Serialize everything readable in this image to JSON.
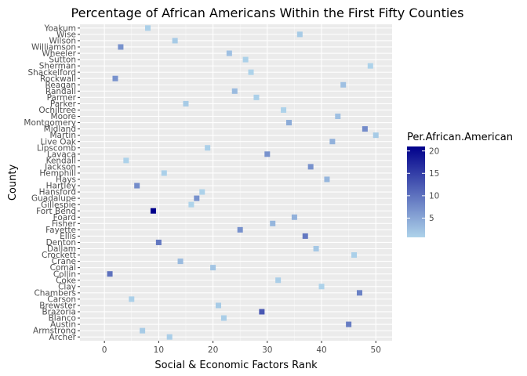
{
  "chart_data": {
    "type": "scatter",
    "title": "Percentage of African Americans Within the First Fifty Counties",
    "xlabel": "Social & Economic Factors Rank",
    "ylabel": "County",
    "xlim": [
      -4.5,
      53
    ],
    "x_ticks": [
      0,
      10,
      20,
      30,
      40,
      50
    ],
    "grid": true,
    "legend_position": "right",
    "legend": {
      "title": "Per.African.American",
      "ticks": [
        5,
        10,
        15,
        20
      ],
      "range": [
        0.7,
        21
      ],
      "colors": {
        "low": "#aed3ea",
        "high": "#00008b"
      }
    },
    "counties": [
      "Archer",
      "Armstrong",
      "Austin",
      "Blanco",
      "Brazoria",
      "Brewster",
      "Carson",
      "Chambers",
      "Clay",
      "Coke",
      "Collin",
      "Comal",
      "Crane",
      "Crockett",
      "Dallam",
      "Denton",
      "Ellis",
      "Fayette",
      "Fisher",
      "Foard",
      "Fort Bend",
      "Gillespie",
      "Guadalupe",
      "Hansford",
      "Hartley",
      "Hays",
      "Hemphill",
      "Jackson",
      "Kendall",
      "Lavaca",
      "Lipscomb",
      "Live Oak",
      "Martin",
      "Midland",
      "Montgomery",
      "Moore",
      "Ochiltree",
      "Parker",
      "Parmer",
      "Randall",
      "Reagan",
      "Rockwall",
      "Shackelford",
      "Sherman",
      "Sutton",
      "Wheeler",
      "Williamson",
      "Wilson",
      "Wise",
      "Yoakum"
    ],
    "points": [
      {
        "county": "Archer",
        "rank": 12,
        "pct": 1.2
      },
      {
        "county": "Armstrong",
        "rank": 7,
        "pct": 1.5
      },
      {
        "county": "Austin",
        "rank": 45,
        "pct": 9.0
      },
      {
        "county": "Blanco",
        "rank": 22,
        "pct": 1.2
      },
      {
        "county": "Brazoria",
        "rank": 29,
        "pct": 12.5
      },
      {
        "county": "Brewster",
        "rank": 21,
        "pct": 1.5
      },
      {
        "county": "Carson",
        "rank": 5,
        "pct": 1.0
      },
      {
        "county": "Chambers",
        "rank": 47,
        "pct": 8.5
      },
      {
        "county": "Clay",
        "rank": 40,
        "pct": 0.8
      },
      {
        "county": "Coke",
        "rank": 32,
        "pct": 1.2
      },
      {
        "county": "Collin",
        "rank": 1,
        "pct": 10.0
      },
      {
        "county": "Comal",
        "rank": 20,
        "pct": 2.0
      },
      {
        "county": "Crane",
        "rank": 14,
        "pct": 3.0
      },
      {
        "county": "Crockett",
        "rank": 46,
        "pct": 1.0
      },
      {
        "county": "Dallam",
        "rank": 39,
        "pct": 1.8
      },
      {
        "county": "Denton",
        "rank": 10,
        "pct": 9.5
      },
      {
        "county": "Ellis",
        "rank": 37,
        "pct": 9.5
      },
      {
        "county": "Fayette",
        "rank": 25,
        "pct": 7.0
      },
      {
        "county": "Fisher",
        "rank": 31,
        "pct": 3.5
      },
      {
        "county": "Foard",
        "rank": 35,
        "pct": 4.0
      },
      {
        "county": "Fort Bend",
        "rank": 9,
        "pct": 21.0
      },
      {
        "county": "Gillespie",
        "rank": 16,
        "pct": 0.7
      },
      {
        "county": "Guadalupe",
        "rank": 17,
        "pct": 7.0
      },
      {
        "county": "Hansford",
        "rank": 18,
        "pct": 0.8
      },
      {
        "county": "Hartley",
        "rank": 6,
        "pct": 7.5
      },
      {
        "county": "Hays",
        "rank": 41,
        "pct": 3.5
      },
      {
        "county": "Hemphill",
        "rank": 11,
        "pct": 1.0
      },
      {
        "county": "Jackson",
        "rank": 38,
        "pct": 7.0
      },
      {
        "county": "Kendall",
        "rank": 4,
        "pct": 0.8
      },
      {
        "county": "Lavaca",
        "rank": 30,
        "pct": 7.0
      },
      {
        "county": "Lipscomb",
        "rank": 19,
        "pct": 1.0
      },
      {
        "county": "Live Oak",
        "rank": 42,
        "pct": 4.0
      },
      {
        "county": "Martin",
        "rank": 50,
        "pct": 1.5
      },
      {
        "county": "Midland",
        "rank": 48,
        "pct": 7.5
      },
      {
        "county": "Montgomery",
        "rank": 34,
        "pct": 4.5
      },
      {
        "county": "Moore",
        "rank": 43,
        "pct": 2.5
      },
      {
        "county": "Ochiltree",
        "rank": 33,
        "pct": 0.8
      },
      {
        "county": "Parker",
        "rank": 15,
        "pct": 1.5
      },
      {
        "county": "Parmer",
        "rank": 28,
        "pct": 1.0
      },
      {
        "county": "Randall",
        "rank": 24,
        "pct": 3.0
      },
      {
        "county": "Reagan",
        "rank": 44,
        "pct": 2.5
      },
      {
        "county": "Rockwall",
        "rank": 2,
        "pct": 7.0
      },
      {
        "county": "Shackelford",
        "rank": 27,
        "pct": 0.7
      },
      {
        "county": "Sherman",
        "rank": 49,
        "pct": 0.8
      },
      {
        "county": "Sutton",
        "rank": 26,
        "pct": 0.9
      },
      {
        "county": "Wheeler",
        "rank": 23,
        "pct": 2.5
      },
      {
        "county": "Williamson",
        "rank": 3,
        "pct": 7.0
      },
      {
        "county": "Wilson",
        "rank": 13,
        "pct": 1.5
      },
      {
        "county": "Wise",
        "rank": 36,
        "pct": 1.5
      },
      {
        "county": "Yoakum",
        "rank": 8,
        "pct": 1.0
      }
    ]
  }
}
